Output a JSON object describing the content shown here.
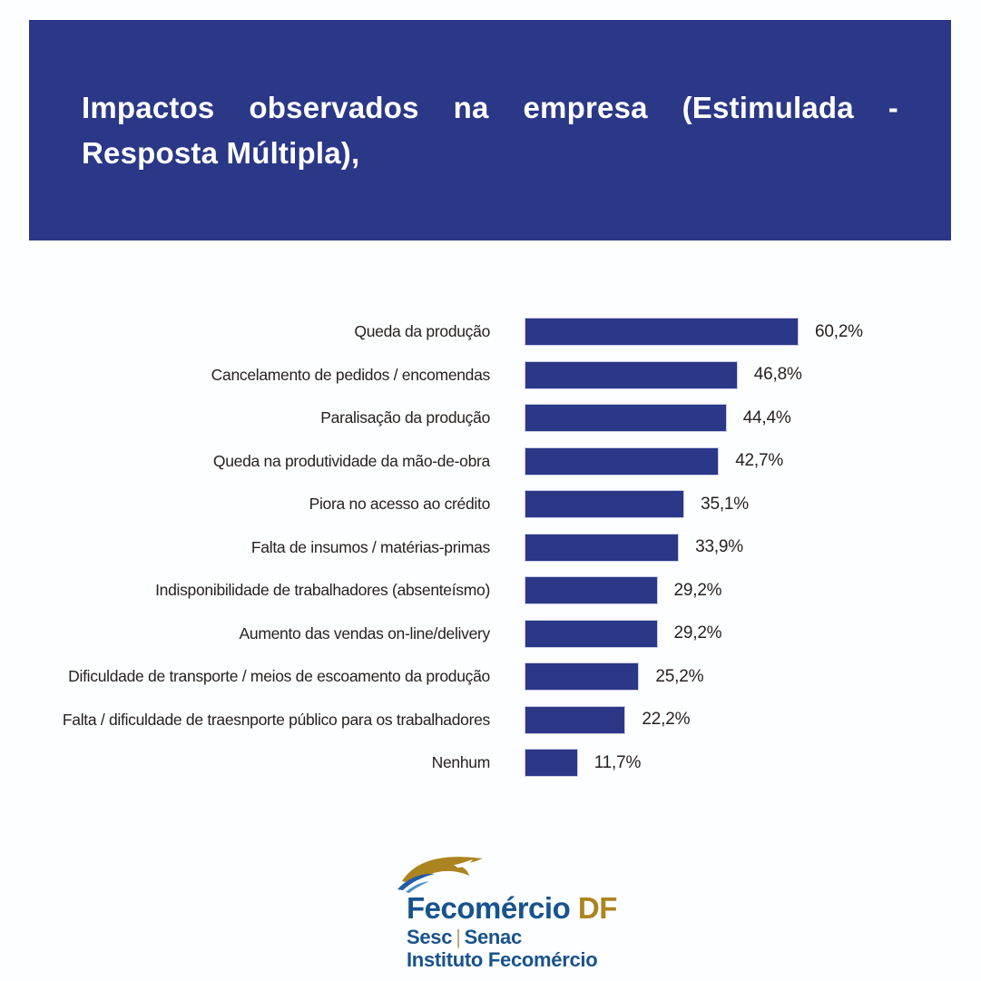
{
  "colors": {
    "accent": "#2B3787",
    "bar_border": "#C9CDE6",
    "text_dark": "#262220",
    "logo_blue": "#17538D",
    "logo_gold": "#AC841F",
    "logo_sep": "#B5A36B",
    "page_bg": "#FDFEFF"
  },
  "header": {
    "title_line1": "Impactos observados na empresa (Estimulada -",
    "title_line2": "Resposta Múltipla),"
  },
  "chart_data": {
    "type": "bar",
    "orientation": "horizontal",
    "title": "Impactos observados na empresa (Estimulada - Resposta Múltipla),",
    "categories": [
      "Queda da produção",
      "Cancelamento de pedidos / encomendas",
      "Paralisação da produção",
      "Queda na produtividade da mão-de-obra",
      "Piora no acesso ao crédito",
      "Falta de insumos / matérias-primas",
      "Indisponibilidade de trabalhadores (absenteísmo)",
      "Aumento das vendas on-line/delivery",
      "Dificuldade de transporte / meios de escoamento da produção",
      "Falta / dificuldade de traesnporte público para os trabalhadores",
      "Nenhum"
    ],
    "values": [
      60.2,
      46.8,
      44.4,
      42.7,
      35.1,
      33.9,
      29.2,
      29.2,
      25.2,
      22.2,
      11.7
    ],
    "value_labels": [
      "60,2%",
      "46,8%",
      "44,4%",
      "42,7%",
      "35,1%",
      "33,9%",
      "29,2%",
      "29,2%",
      "25,2%",
      "22,2%",
      "11,7%"
    ],
    "bar_color": "#2B3787",
    "xlim": [
      0,
      65
    ],
    "grid": false,
    "legend": false
  },
  "footer_logo": {
    "brand": "Fecomércio",
    "brand_suffix": "DF",
    "line2_left": "Sesc",
    "line2_sep": "|",
    "line2_right": "Senac",
    "line3": "Instituto Fecomércio"
  }
}
